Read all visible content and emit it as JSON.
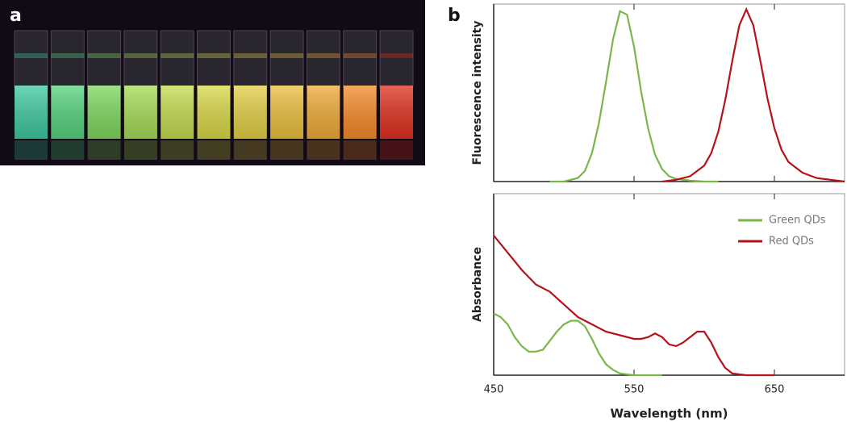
{
  "panels": [
    "a",
    "b"
  ],
  "chart_data": [
    {
      "type": "line",
      "ylabel": "Fluorescence intensity",
      "xlim": [
        450,
        700
      ],
      "ylim": [
        0,
        1
      ],
      "xticks": [
        450,
        550,
        650
      ],
      "series": [
        {
          "name": "Green QDs",
          "color": "#7ab648",
          "x": [
            490,
            500,
            510,
            515,
            520,
            525,
            530,
            535,
            540,
            545,
            550,
            555,
            560,
            565,
            570,
            575,
            580,
            590,
            600,
            610
          ],
          "values": [
            0,
            0,
            0.02,
            0.06,
            0.16,
            0.33,
            0.56,
            0.8,
            0.96,
            0.94,
            0.76,
            0.51,
            0.3,
            0.15,
            0.07,
            0.03,
            0.015,
            0.005,
            0,
            0
          ]
        },
        {
          "name": "Red QDs",
          "color": "#b5121b",
          "x": [
            570,
            580,
            590,
            600,
            605,
            610,
            615,
            620,
            625,
            630,
            635,
            640,
            645,
            650,
            655,
            660,
            670,
            680,
            690,
            700
          ],
          "values": [
            0,
            0.01,
            0.03,
            0.09,
            0.16,
            0.28,
            0.46,
            0.68,
            0.88,
            0.97,
            0.88,
            0.68,
            0.47,
            0.3,
            0.18,
            0.11,
            0.05,
            0.02,
            0.01,
            0
          ]
        }
      ]
    },
    {
      "type": "line",
      "ylabel": "Absorbance",
      "xlabel": "Wavelength (nm)",
      "xlim": [
        450,
        700
      ],
      "ylim": [
        0,
        1
      ],
      "xticks": [
        450,
        550,
        650
      ],
      "legend": "upper right",
      "series": [
        {
          "name": "Green QDs",
          "color": "#7ab648",
          "x": [
            450,
            455,
            460,
            465,
            470,
            475,
            480,
            485,
            490,
            495,
            500,
            505,
            510,
            515,
            520,
            525,
            530,
            535,
            540,
            550,
            570
          ],
          "values": [
            0.34,
            0.32,
            0.28,
            0.21,
            0.16,
            0.13,
            0.13,
            0.14,
            0.19,
            0.24,
            0.28,
            0.3,
            0.3,
            0.27,
            0.2,
            0.12,
            0.06,
            0.03,
            0.01,
            0,
            0
          ]
        },
        {
          "name": "Red QDs",
          "color": "#b5121b",
          "x": [
            450,
            470,
            480,
            490,
            500,
            510,
            520,
            530,
            540,
            550,
            555,
            560,
            565,
            570,
            575,
            580,
            585,
            590,
            595,
            600,
            605,
            610,
            615,
            620,
            630,
            650
          ],
          "values": [
            0.77,
            0.58,
            0.5,
            0.46,
            0.39,
            0.32,
            0.28,
            0.24,
            0.22,
            0.2,
            0.2,
            0.21,
            0.23,
            0.21,
            0.17,
            0.16,
            0.18,
            0.21,
            0.24,
            0.24,
            0.18,
            0.1,
            0.04,
            0.01,
            0,
            0
          ]
        }
      ]
    }
  ]
}
